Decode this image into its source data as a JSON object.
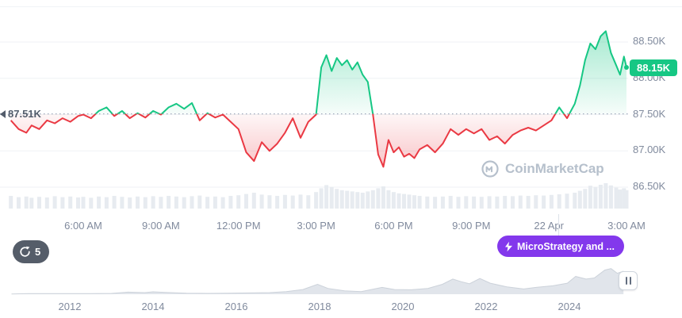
{
  "colors": {
    "up": "#16c784",
    "down": "#ea3943",
    "axis_text": "#808a9d",
    "grid": "#eff2f5",
    "baseline_dots": "#8f9bb0",
    "volume_bar": "#e7ebf0",
    "mini_fill": "#e1e5eb",
    "mini_stroke": "#ccd2da",
    "watermark": "#b6c0cc",
    "annotation_bg": "#8338ec",
    "history_bg": "#555d69"
  },
  "price_axis": {
    "current_price_label": "88.15K",
    "baseline_label": "87.51K"
  },
  "watermark": {
    "label": "CoinMarketCap"
  },
  "annotation": {
    "label": "MicroStrategy and ...",
    "icon": "lightning"
  },
  "history_control": {
    "count": "5"
  },
  "chart_data": [
    {
      "type": "line",
      "name": "price-intraday",
      "x_unit": "hour of day (24h clock; values > 24 are the next day, 22 Apr)",
      "baseline": 87.51,
      "ylim": [
        86.3,
        89.0
      ],
      "grid": "horizontal",
      "legend": "none",
      "y_ticks": [
        {
          "value": 88.5,
          "label": "88.50K"
        },
        {
          "value": 88.0,
          "label": "88.00K"
        },
        {
          "value": 87.5,
          "label": "87.50K"
        },
        {
          "value": 87.0,
          "label": "87.00K"
        },
        {
          "value": 86.5,
          "label": "86.50K"
        }
      ],
      "x_ticks": [
        {
          "hour": 6,
          "label": "6:00 AM"
        },
        {
          "hour": 9,
          "label": "9:00 AM"
        },
        {
          "hour": 12,
          "label": "12:00 PM"
        },
        {
          "hour": 15,
          "label": "3:00 PM"
        },
        {
          "hour": 18,
          "label": "6:00 PM"
        },
        {
          "hour": 21,
          "label": "9:00 PM"
        },
        {
          "hour": 24,
          "label": "22 Apr"
        },
        {
          "hour": 27,
          "label": "3:00 AM"
        }
      ],
      "x": [
        3.2,
        3.5,
        3.8,
        4.0,
        4.3,
        4.6,
        4.9,
        5.2,
        5.5,
        5.8,
        6.0,
        6.3,
        6.6,
        6.9,
        7.2,
        7.5,
        7.8,
        8.1,
        8.4,
        8.7,
        9.0,
        9.3,
        9.6,
        9.9,
        10.2,
        10.5,
        10.8,
        11.1,
        11.4,
        11.7,
        12.0,
        12.3,
        12.6,
        12.9,
        13.2,
        13.5,
        13.8,
        14.1,
        14.4,
        14.7,
        15.0,
        15.2,
        15.4,
        15.6,
        15.8,
        16.0,
        16.2,
        16.4,
        16.6,
        16.8,
        17.0,
        17.2,
        17.4,
        17.6,
        17.8,
        18.0,
        18.2,
        18.4,
        18.6,
        18.8,
        19.0,
        19.3,
        19.6,
        19.9,
        20.2,
        20.5,
        20.8,
        21.1,
        21.4,
        21.7,
        22.0,
        22.3,
        22.6,
        22.9,
        23.2,
        23.5,
        23.8,
        24.1,
        24.4,
        24.7,
        25.0,
        25.2,
        25.4,
        25.6,
        25.8,
        26.0,
        26.2,
        26.4,
        26.6,
        26.75,
        26.9,
        27.0
      ],
      "values": [
        87.42,
        87.3,
        87.25,
        87.35,
        87.3,
        87.42,
        87.38,
        87.45,
        87.4,
        87.48,
        87.5,
        87.45,
        87.55,
        87.6,
        87.48,
        87.55,
        87.45,
        87.52,
        87.46,
        87.55,
        87.5,
        87.6,
        87.65,
        87.58,
        87.66,
        87.42,
        87.52,
        87.46,
        87.5,
        87.4,
        87.3,
        86.98,
        86.86,
        87.12,
        87.0,
        87.1,
        87.25,
        87.45,
        87.18,
        87.4,
        87.5,
        88.15,
        88.32,
        88.1,
        88.28,
        88.18,
        88.25,
        88.12,
        88.22,
        88.05,
        87.95,
        87.5,
        86.95,
        86.78,
        87.15,
        86.98,
        87.05,
        86.92,
        86.96,
        86.9,
        87.02,
        87.08,
        86.98,
        87.1,
        87.3,
        87.22,
        87.3,
        87.24,
        87.3,
        87.15,
        87.2,
        87.1,
        87.22,
        87.28,
        87.32,
        87.28,
        87.35,
        87.42,
        87.6,
        87.45,
        87.65,
        87.9,
        88.25,
        88.48,
        88.4,
        88.58,
        88.65,
        88.35,
        88.18,
        88.05,
        88.3,
        88.15
      ],
      "volume": [
        0.4,
        0.36,
        0.38,
        0.34,
        0.37,
        0.35,
        0.39,
        0.36,
        0.38,
        0.35,
        0.37,
        0.34,
        0.38,
        0.36,
        0.4,
        0.37,
        0.35,
        0.38,
        0.36,
        0.39,
        0.37,
        0.4,
        0.38,
        0.36,
        0.39,
        0.41,
        0.37,
        0.38,
        0.36,
        0.4,
        0.42,
        0.46,
        0.5,
        0.44,
        0.42,
        0.4,
        0.43,
        0.41,
        0.44,
        0.42,
        0.52,
        0.64,
        0.74,
        0.68,
        0.62,
        0.58,
        0.56,
        0.54,
        0.52,
        0.5,
        0.54,
        0.58,
        0.64,
        0.7,
        0.58,
        0.52,
        0.48,
        0.46,
        0.44,
        0.42,
        0.4,
        0.38,
        0.37,
        0.38,
        0.4,
        0.37,
        0.39,
        0.38,
        0.37,
        0.39,
        0.38,
        0.4,
        0.39,
        0.41,
        0.4,
        0.42,
        0.41,
        0.43,
        0.45,
        0.47,
        0.5,
        0.56,
        0.62,
        0.72,
        0.68,
        0.75,
        0.8,
        0.73,
        0.66,
        0.6,
        0.64,
        0.58
      ],
      "current_value": 88.15
    },
    {
      "type": "area",
      "name": "all-time-range-selector",
      "x_unit": "year",
      "ylim": [
        0,
        1
      ],
      "x_ticks": [
        {
          "year": 2012,
          "label": "2012"
        },
        {
          "year": 2014,
          "label": "2014"
        },
        {
          "year": 2016,
          "label": "2016"
        },
        {
          "year": 2018,
          "label": "2018"
        },
        {
          "year": 2020,
          "label": "2020"
        },
        {
          "year": 2022,
          "label": "2022"
        },
        {
          "year": 2024,
          "label": "2024"
        }
      ],
      "x": [
        2010.6,
        2011,
        2011.5,
        2012,
        2012.5,
        2013,
        2013.4,
        2013.8,
        2014.0,
        2014.3,
        2014.8,
        2015.3,
        2015.8,
        2016.3,
        2016.8,
        2017.2,
        2017.6,
        2017.95,
        2018.2,
        2018.6,
        2019.0,
        2019.5,
        2019.8,
        2020.2,
        2020.6,
        2020.95,
        2021.2,
        2021.4,
        2021.6,
        2021.85,
        2022.1,
        2022.5,
        2022.9,
        2023.2,
        2023.6,
        2023.95,
        2024.15,
        2024.4,
        2024.6,
        2024.85,
        2025.0,
        2025.15,
        2025.3
      ],
      "values": [
        0.01,
        0.02,
        0.02,
        0.02,
        0.02,
        0.03,
        0.08,
        0.06,
        0.09,
        0.07,
        0.04,
        0.03,
        0.04,
        0.05,
        0.06,
        0.1,
        0.18,
        0.38,
        0.22,
        0.13,
        0.1,
        0.26,
        0.18,
        0.17,
        0.22,
        0.38,
        0.58,
        0.48,
        0.4,
        0.6,
        0.42,
        0.28,
        0.2,
        0.26,
        0.32,
        0.42,
        0.68,
        0.58,
        0.62,
        0.92,
        0.98,
        0.8,
        0.88
      ]
    }
  ]
}
